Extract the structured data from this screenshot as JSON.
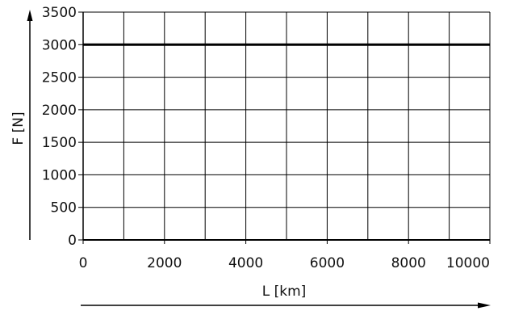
{
  "chart_data": {
    "type": "line",
    "title": "",
    "xlabel": "L [km]",
    "ylabel": "F [N]",
    "xlim": [
      0,
      10000
    ],
    "ylim": [
      0,
      3500
    ],
    "x_ticks": [
      0,
      2000,
      4000,
      6000,
      8000,
      10000
    ],
    "y_ticks": [
      0,
      500,
      1000,
      1500,
      2000,
      2500,
      3000,
      3500
    ],
    "x_gridlines": [
      0,
      1000,
      2000,
      3000,
      4000,
      5000,
      6000,
      7000,
      8000,
      9000,
      10000
    ],
    "y_gridlines": [
      0,
      500,
      1000,
      1500,
      2000,
      2500,
      3000,
      3500
    ],
    "grid": true,
    "legend": "none",
    "series": [
      {
        "x": [
          0,
          10000
        ],
        "y": [
          3000,
          3000
        ],
        "color": "#000000"
      }
    ]
  }
}
